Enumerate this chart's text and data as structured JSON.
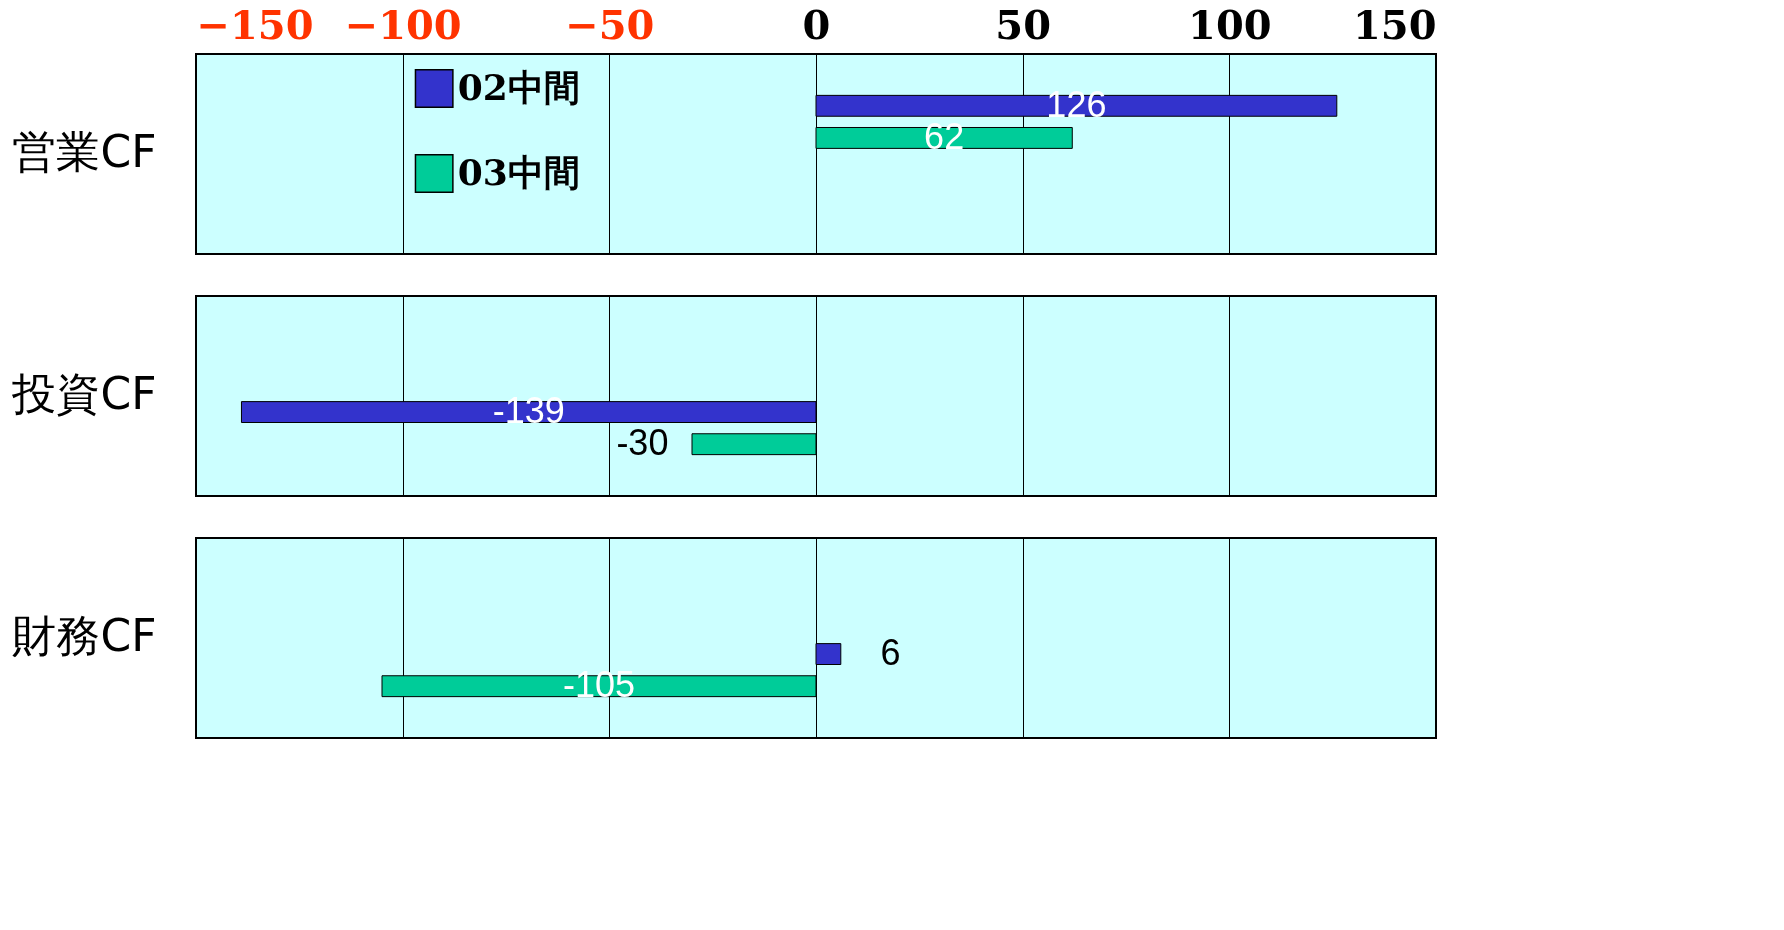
{
  "chart_data": [
    {
      "type": "bar",
      "orientation": "horizontal",
      "categories": [
        "営業CF"
      ],
      "series": [
        {
          "name": "02中間",
          "color": "#3333cc",
          "values": [
            126
          ]
        },
        {
          "name": "03中間",
          "color": "#00cc99",
          "values": [
            62
          ]
        }
      ],
      "xlim": [
        -150,
        150
      ],
      "xticks": [
        -150,
        -100,
        -50,
        0,
        50,
        100,
        150
      ],
      "grid": "x",
      "legend": "left",
      "data_labels": true
    },
    {
      "type": "bar",
      "orientation": "horizontal",
      "categories": [
        "投資CF"
      ],
      "series": [
        {
          "color": "#3333cc",
          "values": [
            -139
          ]
        },
        {
          "color": "#00cc99",
          "values": [
            -30
          ]
        }
      ],
      "xlim": [
        -150,
        150
      ],
      "xticks": [
        -150,
        -100,
        -50,
        0,
        50,
        100,
        150
      ],
      "grid": "x",
      "tick_labels": "y",
      "data_labels": true
    },
    {
      "type": "bar",
      "orientation": "horizontal",
      "categories": [
        "財務CF"
      ],
      "series": [
        {
          "color": "#3333cc",
          "values": [
            6
          ]
        },
        {
          "color": "#00cc99",
          "values": [
            -105
          ]
        }
      ],
      "xlim": [
        -150,
        150
      ],
      "xticks": [
        -150,
        -100,
        -50,
        0,
        50,
        100,
        150
      ],
      "grid": "x",
      "tick_labels": "y",
      "data_labels": true
    }
  ]
}
